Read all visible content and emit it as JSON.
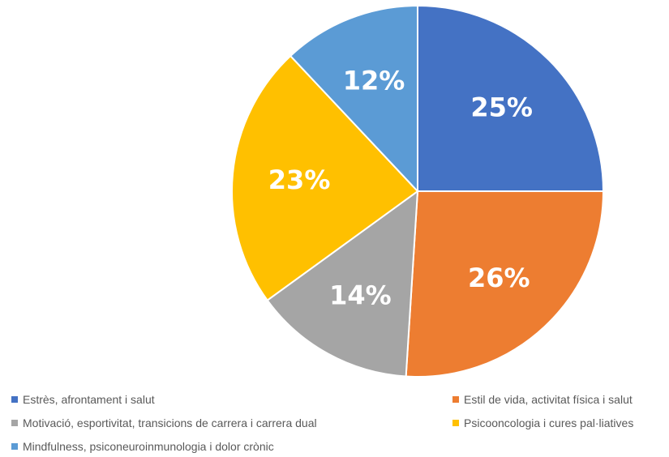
{
  "chart_data": {
    "type": "pie",
    "title": "",
    "slices": [
      {
        "label": "Estrès, afrontament i salut",
        "value": 25,
        "value_label": "25%",
        "color": "#4472C4"
      },
      {
        "label": "Estil de vida, activitat física i salut",
        "value": 26,
        "value_label": "26%",
        "color": "#ED7D31"
      },
      {
        "label": "Motivació, esportivitat, transicions de carrera i carrera dual",
        "value": 14,
        "value_label": "14%",
        "color": "#A5A5A5"
      },
      {
        "label": "Psicooncologia i cures pal·liatives",
        "value": 23,
        "value_label": "23%",
        "color": "#FFC000"
      },
      {
        "label": "Mindfulness, psiconeuroinmunologia i dolor crònic",
        "value": 12,
        "value_label": "12%",
        "color": "#5B9BD5"
      }
    ],
    "start_angle": "12 o'clock",
    "direction": "clockwise",
    "legend_position": "bottom"
  }
}
